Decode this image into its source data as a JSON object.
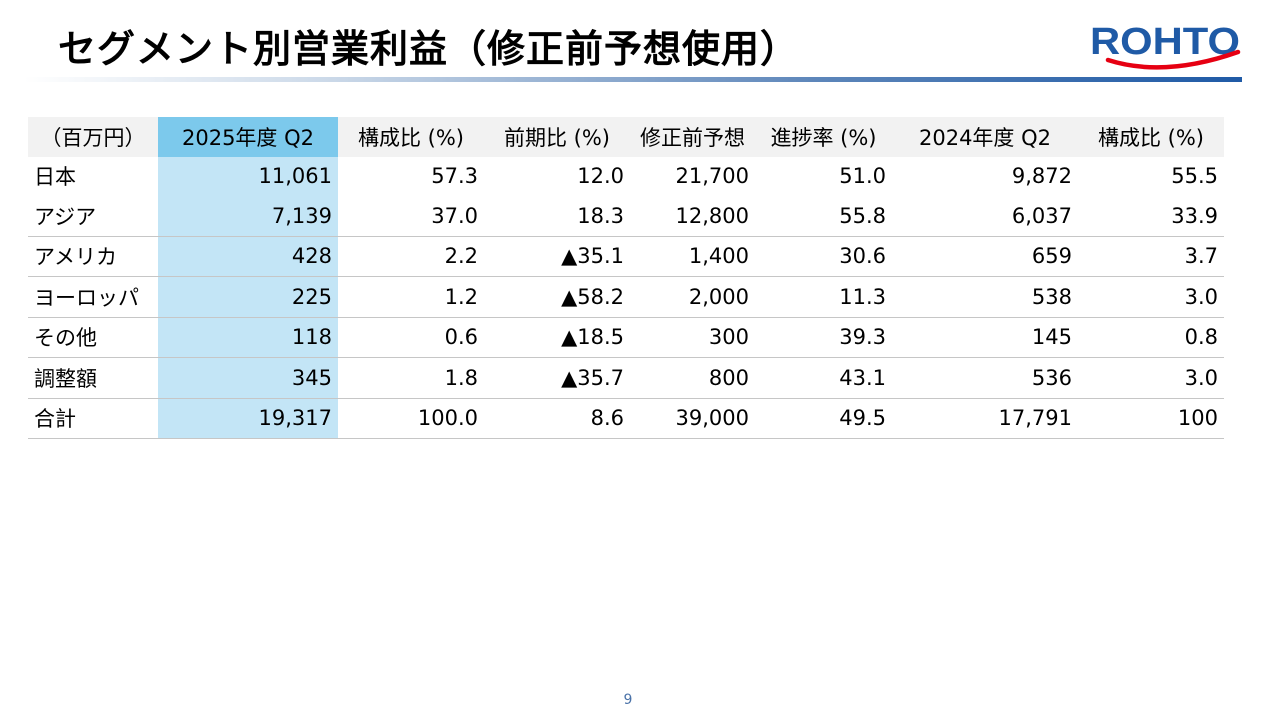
{
  "slide": {
    "title": "セグメント別営業利益（修正前予想使用）",
    "page_number": "9"
  },
  "logo": {
    "text": "ROHTO",
    "color": "#1f5aa6",
    "swoosh_color": "#e60012"
  },
  "table": {
    "headers": [
      "（百万円）",
      "2025年度 Q2",
      "構成比 (%)",
      "前期比 (%)",
      "修正前予想",
      "進捗率 (%)",
      "2024年度 Q2",
      "構成比 (%)"
    ],
    "rows": [
      [
        "日本",
        "11,061",
        "57.3",
        "12.0",
        "21,700",
        "51.0",
        "9,872",
        "55.5"
      ],
      [
        "アジア",
        "7,139",
        "37.0",
        "18.3",
        "12,800",
        "55.8",
        "6,037",
        "33.9"
      ],
      [
        "アメリカ",
        "428",
        "2.2",
        "▲35.1",
        "1,400",
        "30.6",
        "659",
        "3.7"
      ],
      [
        "ヨーロッパ",
        "225",
        "1.2",
        "▲58.2",
        "2,000",
        "11.3",
        "538",
        "3.0"
      ],
      [
        "その他",
        "118",
        "0.6",
        "▲18.5",
        "300",
        "39.3",
        "145",
        "0.8"
      ],
      [
        "調整額",
        "345",
        "1.8",
        "▲35.7",
        "800",
        "43.1",
        "536",
        "3.0"
      ],
      [
        "合計",
        "19,317",
        "100.0",
        "8.6",
        "39,000",
        "49.5",
        "17,791",
        "100"
      ]
    ],
    "highlight_header_color": "#7cc9ec",
    "highlight_cell_color": "#c3e5f6"
  }
}
